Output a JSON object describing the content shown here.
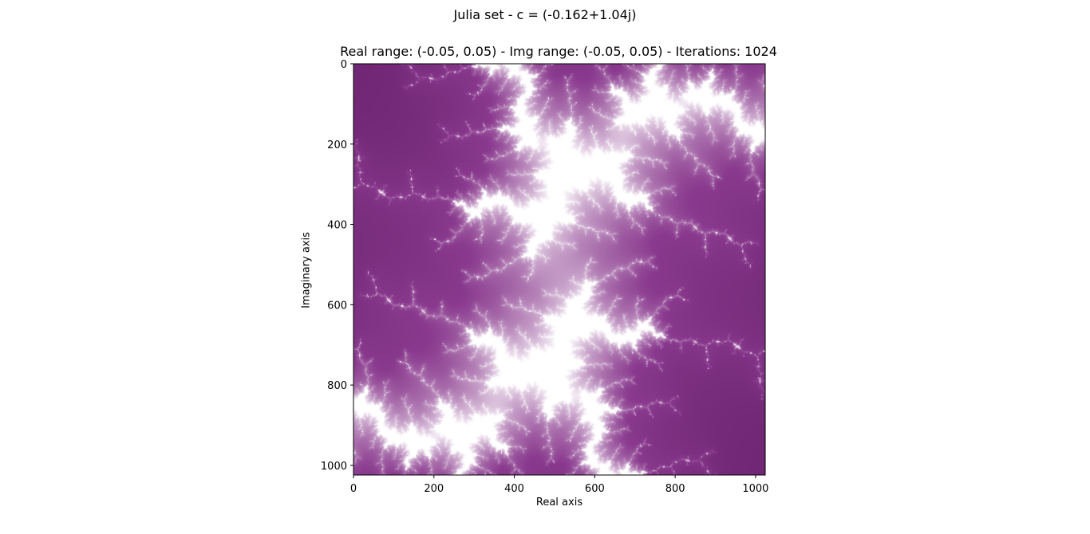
{
  "chart_data": {
    "type": "heatmap",
    "title": "Julia set - c = (-0.162+1.04j)",
    "subtitle": "Real range: (-0.05, 0.05) - Img range: (-0.05, 0.05) - Iterations: 1024",
    "xlabel": "Real axis",
    "ylabel": "Imaginary axis",
    "c": {
      "re": -0.162,
      "im": 1.04
    },
    "real_range": [
      -0.05,
      0.05
    ],
    "img_range": [
      -0.05,
      0.05
    ],
    "iterations": 1024,
    "resolution": [
      1024,
      1024
    ],
    "xlim": [
      0,
      1024
    ],
    "ylim": [
      1024,
      0
    ],
    "xticks": [
      0,
      200,
      400,
      600,
      800,
      1000
    ],
    "yticks": [
      0,
      200,
      400,
      600,
      800,
      1000
    ],
    "colormap": {
      "low": "#4a0a4e",
      "mid": "#8a3a8e",
      "high": "#ffffff"
    }
  }
}
